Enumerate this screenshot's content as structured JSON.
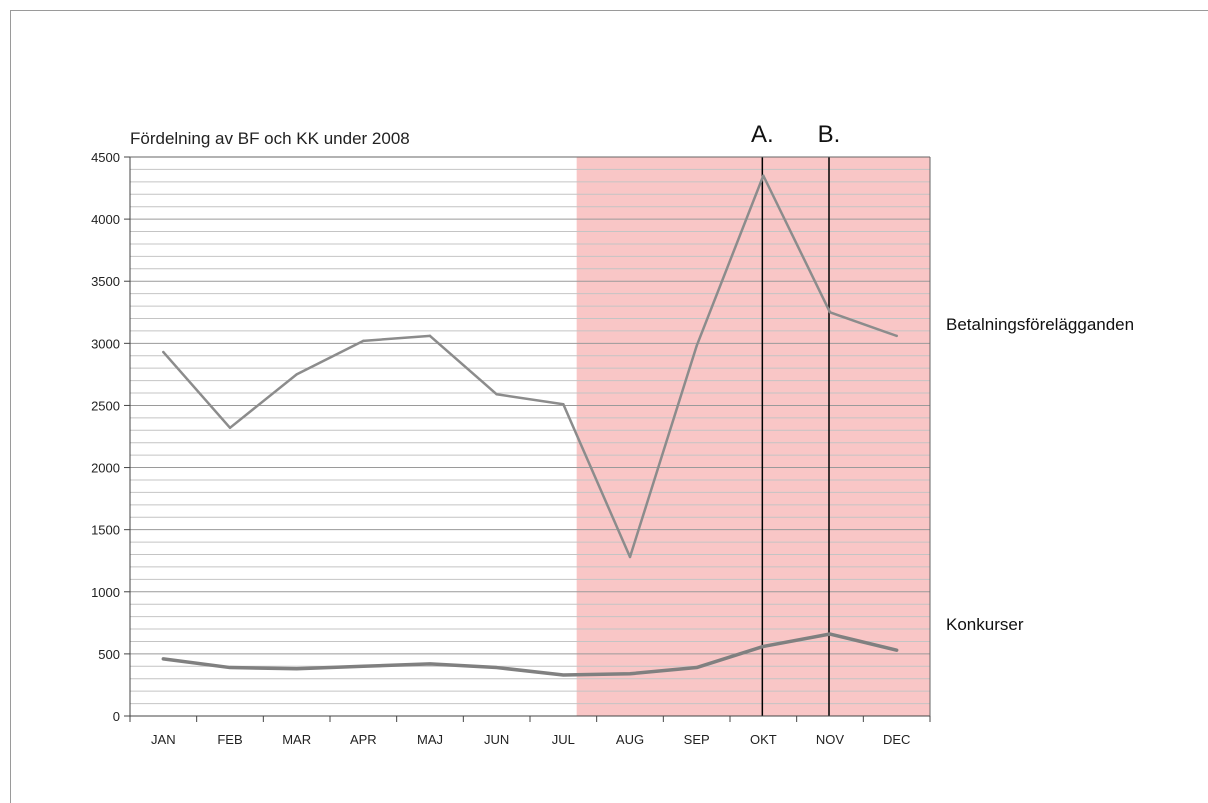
{
  "chart_data": {
    "type": "line",
    "title": "Fördelning  av BF och KK under 2008",
    "categories": [
      "JAN",
      "FEB",
      "MAR",
      "APR",
      "MAJ",
      "JUN",
      "JUL",
      "AUG",
      "SEP",
      "OKT",
      "NOV",
      "DEC"
    ],
    "ylim": [
      0,
      4500
    ],
    "yticks": [
      "0",
      "500",
      "1000",
      "1500",
      "2000",
      "2500",
      "3000",
      "3500",
      "4000",
      "4500"
    ],
    "grid": true,
    "series": [
      {
        "name": "Betalningsförelägganden",
        "values": [
          2930,
          2320,
          2750,
          3020,
          3060,
          2590,
          2510,
          1280,
          2980,
          4350,
          3250,
          3060
        ],
        "color": "#8c8c8c"
      },
      {
        "name": "Konkurser",
        "values": [
          460,
          390,
          380,
          400,
          420,
          390,
          330,
          340,
          390,
          560,
          660,
          530
        ],
        "color": "#808080"
      }
    ],
    "highlight": {
      "from_category": "AUG",
      "to_category": "DEC",
      "color": "#f9c6c6"
    },
    "markers": [
      {
        "label": "A.",
        "category": "OKT"
      },
      {
        "label": "B.",
        "category": "NOV"
      }
    ],
    "xlabel": "",
    "ylabel": ""
  }
}
